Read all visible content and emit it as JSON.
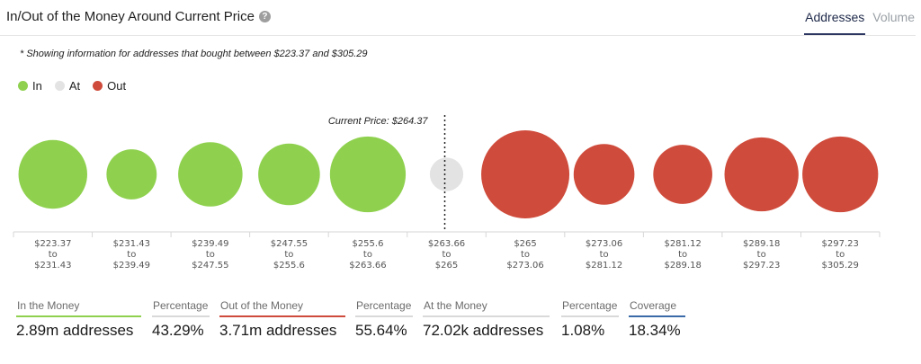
{
  "header": {
    "title": "In/Out of the Money Around Current Price",
    "tabs": [
      {
        "label": "Addresses",
        "active": true
      },
      {
        "label": "Volume",
        "active": false
      }
    ]
  },
  "note": "* Showing information for addresses that bought between $223.37 and $305.29",
  "legend": [
    {
      "label": "In",
      "color": "#8fd14f"
    },
    {
      "label": "At",
      "color": "#e3e3e3"
    },
    {
      "label": "Out",
      "color": "#cf4b3b"
    }
  ],
  "chart_data": {
    "type": "bubble",
    "title": "",
    "current_price_label": "Current Price: $264.37",
    "current_price": 264.37,
    "colors": {
      "in": "#8fd14f",
      "at": "#e3e3e3",
      "out": "#cf4b3b"
    },
    "buckets": [
      {
        "from": "$223.37",
        "to": "$231.43",
        "status": "in",
        "size": 0.78
      },
      {
        "from": "$231.43",
        "to": "$239.49",
        "status": "in",
        "size": 0.57
      },
      {
        "from": "$239.49",
        "to": "$247.55",
        "status": "in",
        "size": 0.73
      },
      {
        "from": "$247.55",
        "to": "$255.6",
        "status": "in",
        "size": 0.7
      },
      {
        "from": "$255.6",
        "to": "$263.66",
        "status": "in",
        "size": 0.86
      },
      {
        "from": "$263.66",
        "to": "$265",
        "status": "at",
        "size": 0.38
      },
      {
        "from": "$265",
        "to": "$273.06",
        "status": "out",
        "size": 1.0
      },
      {
        "from": "$273.06",
        "to": "$281.12",
        "status": "out",
        "size": 0.69
      },
      {
        "from": "$281.12",
        "to": "$289.18",
        "status": "out",
        "size": 0.67
      },
      {
        "from": "$289.18",
        "to": "$297.23",
        "status": "out",
        "size": 0.84
      },
      {
        "from": "$297.23",
        "to": "$305.29",
        "status": "out",
        "size": 0.86
      }
    ],
    "to_word": "to"
  },
  "stats": [
    {
      "label": "In the Money",
      "value": "2.89m addresses",
      "color": "#8fd14f"
    },
    {
      "label": "Percentage",
      "value": "43.29%",
      "color": "#d9d9d9"
    },
    {
      "label": "Out of the Money",
      "value": "3.71m addresses",
      "color": "#cf4b3b"
    },
    {
      "label": "Percentage",
      "value": "55.64%",
      "color": "#d9d9d9"
    },
    {
      "label": "At the Money",
      "value": "72.02k addresses",
      "color": "#d9d9d9"
    },
    {
      "label": "Percentage",
      "value": "1.08%",
      "color": "#d9d9d9"
    },
    {
      "label": "Coverage",
      "value": "18.34%",
      "color": "#3b6aa8"
    }
  ]
}
